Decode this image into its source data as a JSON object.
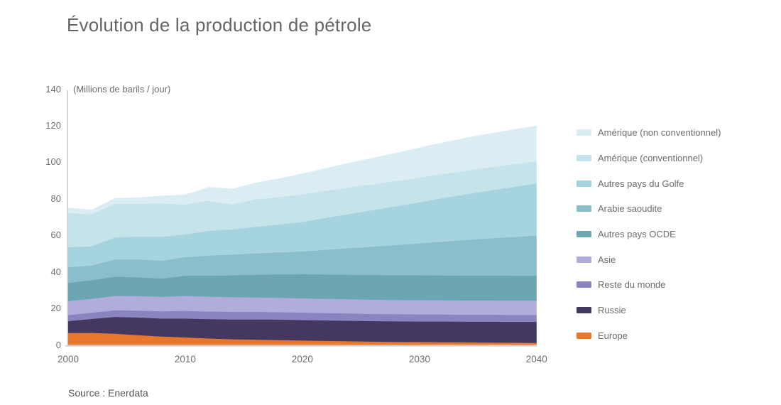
{
  "title": "Évolution de la production de pétrole",
  "source": "Source : Enerdata",
  "chart_data": {
    "type": "area",
    "stacked": true,
    "title": "Évolution de la production de pétrole",
    "unit_label": "(Millions de barils / jour)",
    "x": [
      2000,
      2002,
      2004,
      2006,
      2008,
      2010,
      2012,
      2014,
      2016,
      2018,
      2020,
      2022,
      2024,
      2026,
      2028,
      2030,
      2032,
      2034,
      2036,
      2038,
      2040
    ],
    "x_ticks": [
      2000,
      2010,
      2020,
      2030,
      2040
    ],
    "y_ticks": [
      0,
      20,
      40,
      60,
      80,
      100,
      120,
      140
    ],
    "ylim": [
      0,
      140
    ],
    "xlim": [
      2000,
      2040
    ],
    "grid": "off",
    "legend_position": "right",
    "series": [
      {
        "name": "Europe",
        "color": "#e8772e",
        "values": [
          6.8,
          6.9,
          6.4,
          5.6,
          4.9,
          4.4,
          3.8,
          3.4,
          3.2,
          2.9,
          2.7,
          2.5,
          2.3,
          2.1,
          2.0,
          1.9,
          1.8,
          1.7,
          1.6,
          1.5,
          1.4
        ]
      },
      {
        "name": "Russie",
        "color": "#443760",
        "values": [
          6.5,
          7.6,
          9.2,
          9.7,
          9.8,
          10.3,
          10.6,
          10.8,
          11.0,
          11.2,
          11.2,
          11.2,
          11.2,
          11.2,
          11.2,
          11.2,
          11.3,
          11.3,
          11.4,
          11.4,
          11.5
        ]
      },
      {
        "name": "Reste du monde",
        "color": "#8a84c0",
        "values": [
          3.3,
          3.4,
          3.6,
          3.8,
          4.0,
          4.2,
          4.2,
          4.2,
          4.2,
          4.1,
          4.1,
          4.0,
          4.0,
          3.9,
          3.9,
          3.9,
          3.8,
          3.8,
          3.8,
          3.8,
          3.8
        ]
      },
      {
        "name": "Asie",
        "color": "#b1addb",
        "values": [
          7.7,
          7.6,
          7.9,
          7.9,
          7.9,
          8.2,
          8.1,
          8.0,
          7.9,
          7.9,
          7.8,
          7.8,
          7.8,
          7.8,
          7.8,
          7.8,
          7.8,
          7.8,
          7.8,
          7.8,
          7.8
        ]
      },
      {
        "name": "Autres pays OCDE",
        "color": "#6ba6b2",
        "values": [
          10.0,
          10.2,
          10.5,
          10.3,
          10.0,
          11.0,
          11.5,
          12.0,
          12.4,
          12.8,
          13.2,
          13.3,
          13.4,
          13.5,
          13.5,
          13.6,
          13.6,
          13.6,
          13.6,
          13.6,
          13.6
        ]
      },
      {
        "name": "Arabie saoudite",
        "color": "#8bbecb",
        "values": [
          8.5,
          8.0,
          9.5,
          9.7,
          9.8,
          10.2,
          11.0,
          11.3,
          11.7,
          12.0,
          12.4,
          13.5,
          14.5,
          15.5,
          16.5,
          17.5,
          18.5,
          19.5,
          20.4,
          21.2,
          22.0
        ]
      },
      {
        "name": "Autres pays du Golfe",
        "color": "#a5d3de",
        "values": [
          11.0,
          10.5,
          12.0,
          12.5,
          13.0,
          12.5,
          13.5,
          13.8,
          14.5,
          15.3,
          16.2,
          17.5,
          18.8,
          20.0,
          21.2,
          22.5,
          23.8,
          25.0,
          26.2,
          27.4,
          28.5
        ]
      },
      {
        "name": "Amérique (conventionnel)",
        "color": "#c5e3ea",
        "values": [
          18.8,
          17.5,
          18.5,
          18.0,
          18.3,
          16.3,
          16.5,
          13.6,
          15.0,
          15.0,
          15.0,
          14.8,
          14.5,
          14.2,
          13.8,
          13.5,
          13.2,
          12.9,
          12.6,
          12.4,
          12.2
        ]
      },
      {
        "name": "Amérique (non conventionnel)",
        "color": "#d9edf2",
        "values": [
          2.5,
          2.3,
          2.8,
          3.2,
          4.0,
          5.2,
          7.2,
          8.4,
          8.9,
          9.9,
          11.2,
          12.2,
          13.2,
          14.2,
          15.2,
          16.2,
          17.0,
          17.8,
          18.4,
          18.8,
          19.2
        ]
      }
    ],
    "legend_note": "legend lists series from top of stack to bottom",
    "axis_color": "#c6c6c6"
  }
}
